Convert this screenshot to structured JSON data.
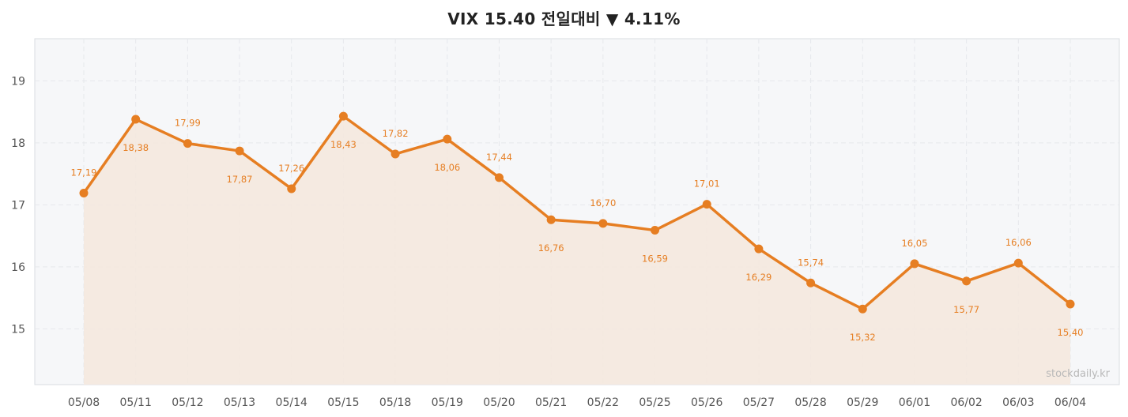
{
  "header": {
    "title": "VIX  15.40  전일대비 ▼ 4.11%"
  },
  "watermark": "stockdaily.kr",
  "colors": {
    "line": "#e67e22",
    "fill": "#f4e8dd",
    "plot_bg": "#f6f7f9",
    "grid": "#e6e8ec",
    "frame": "#d9dce1"
  },
  "chart_data": {
    "type": "line",
    "title": "VIX  15.40  전일대비 ▼ 4.11%",
    "xlabel": "",
    "ylabel": "",
    "categories": [
      "05/08",
      "05/11",
      "05/12",
      "05/13",
      "05/14",
      "05/15",
      "05/18",
      "05/19",
      "05/20",
      "05/21",
      "05/22",
      "05/25",
      "05/26",
      "05/27",
      "05/28",
      "05/29",
      "06/01",
      "06/02",
      "06/03",
      "06/04"
    ],
    "series": [
      {
        "values": [
          17.19,
          18.38,
          17.99,
          17.87,
          17.26,
          18.43,
          17.82,
          18.06,
          17.44,
          16.76,
          16.7,
          16.59,
          17.01,
          16.29,
          15.74,
          15.32,
          16.05,
          15.77,
          16.06,
          15.4
        ],
        "labels": [
          "17,19",
          "18,38",
          "17,99",
          "17,87",
          "17,26",
          "18,43",
          "17,82",
          "18,06",
          "17,44",
          "16,76",
          "16,70",
          "16,59",
          "17,01",
          "16,29",
          "15,74",
          "15,32",
          "16,05",
          "15,77",
          "16,06",
          "15,40"
        ]
      }
    ],
    "yticks": [
      15,
      16,
      17,
      18,
      19
    ],
    "ylim": [
      14.1,
      19.68
    ],
    "grid": true,
    "area_fill": true
  }
}
